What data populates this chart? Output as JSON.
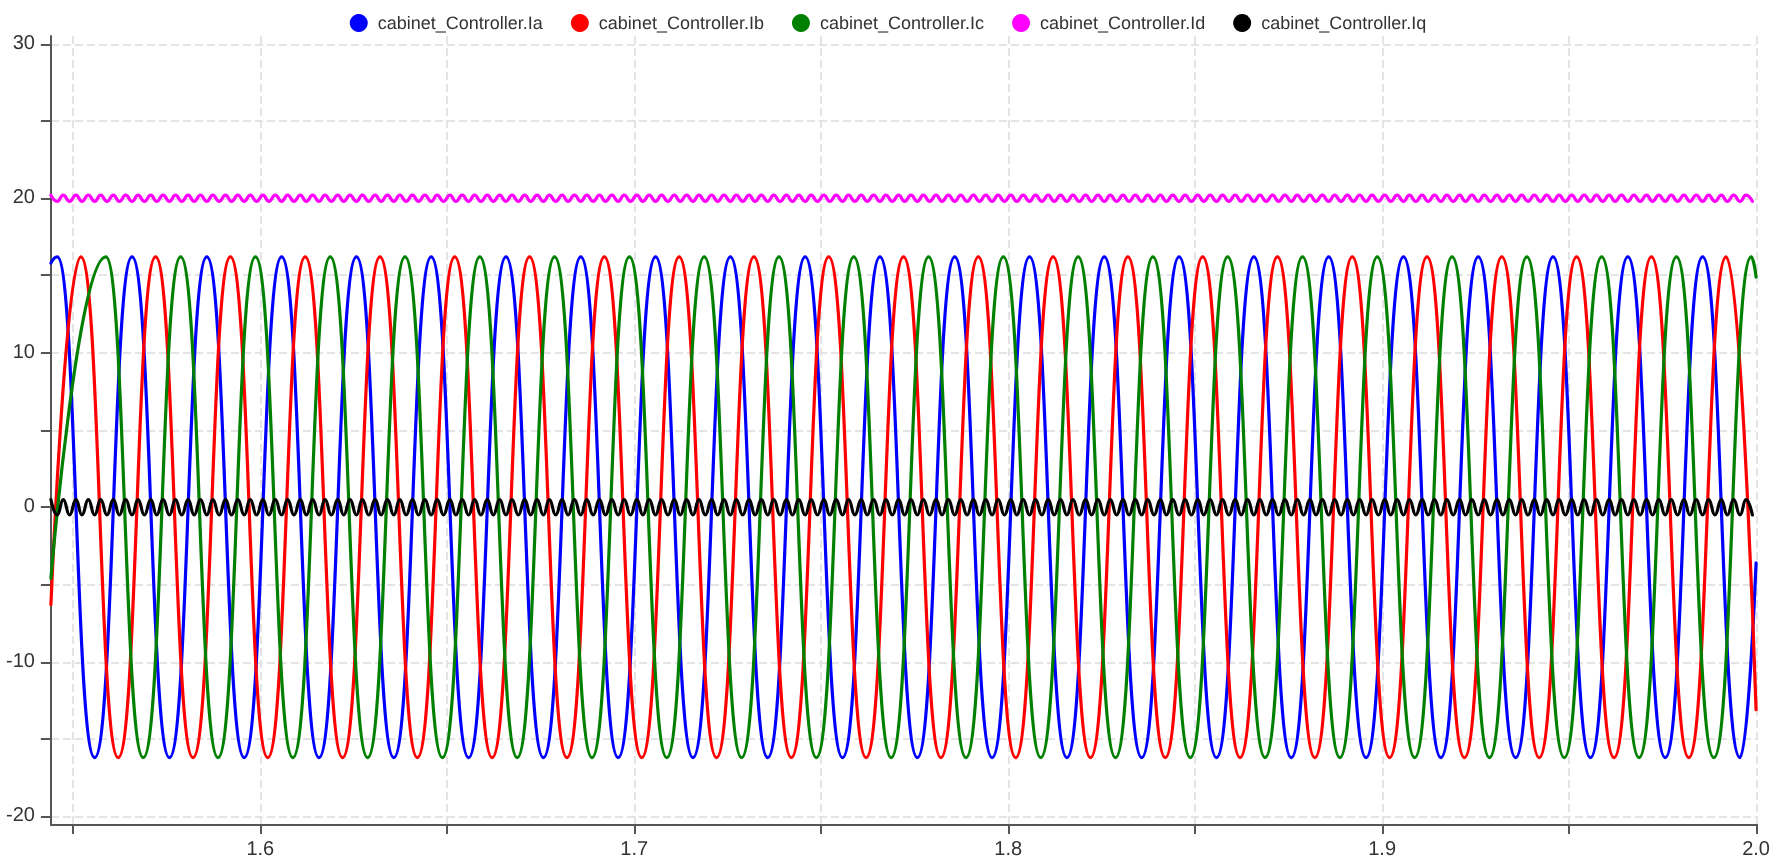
{
  "chart_data": {
    "type": "line",
    "legend": "top",
    "grid": true,
    "marker": "none",
    "line_style": "solid",
    "xlim": [
      1.544,
      2.0
    ],
    "xticks": [
      {
        "value": 1.55,
        "label": null
      },
      1.6,
      {
        "value": 1.65,
        "label": null
      },
      1.7,
      {
        "value": 1.75,
        "label": null
      },
      1.8,
      {
        "value": 1.85,
        "label": null
      },
      1.9,
      {
        "value": 1.95,
        "label": null
      },
      {
        "value": 2.0,
        "label": "2.0"
      }
    ],
    "ylim": [
      -20.5,
      30.5
    ],
    "yticks": [
      -20,
      {
        "value": -15,
        "label": null
      },
      -10,
      {
        "value": -5,
        "label": null
      },
      0,
      {
        "value": 5,
        "label": null
      },
      10,
      {
        "value": 15,
        "label": null
      },
      20,
      {
        "value": 25,
        "label": null
      },
      30
    ],
    "x": [
      1.544,
      1.5457,
      1.5473,
      1.549,
      1.5507,
      1.5523,
      1.554,
      1.5557,
      1.5573,
      1.559,
      1.5607,
      1.5623,
      1.564,
      1.5657,
      1.5673,
      1.569,
      1.5707,
      1.5723,
      1.574,
      1.5757,
      1.5773,
      1.579,
      1.5807,
      1.5823,
      1.584,
      1.5857,
      1.5873,
      1.589,
      1.5907,
      1.5923,
      1.594,
      1.5957,
      1.5973,
      1.599,
      1.6007,
      1.6023,
      1.604,
      1.6057,
      1.6073,
      1.609,
      1.6107,
      1.6123,
      1.614,
      1.6157,
      1.6173,
      1.619,
      1.6207,
      1.6223,
      1.624,
      1.6257,
      1.6273,
      1.629,
      1.6307,
      1.6323,
      1.634,
      1.6357,
      1.6373,
      1.639,
      1.6407,
      1.6423,
      1.644,
      1.6457,
      1.6473,
      1.649,
      1.6507,
      1.6523,
      1.654,
      1.6557,
      1.6573,
      1.659,
      1.6607,
      1.6623,
      1.664,
      1.6657,
      1.6673,
      1.669,
      1.6707,
      1.6723,
      1.674,
      1.6757,
      1.6773,
      1.679,
      1.6807,
      1.6823,
      1.684,
      1.6857,
      1.6873,
      1.689,
      1.6907,
      1.6923,
      1.694,
      1.6957,
      1.6973,
      1.699,
      1.7007,
      1.7023,
      1.704,
      1.7057,
      1.7073,
      1.709,
      1.7107,
      1.7123,
      1.714,
      1.7157,
      1.7173,
      1.719,
      1.7207,
      1.7223,
      1.724,
      1.7257,
      1.7273,
      1.729,
      1.7307,
      1.7323,
      1.734,
      1.7357,
      1.7373,
      1.739,
      1.7407,
      1.7423,
      1.744,
      1.7457,
      1.7473,
      1.749,
      1.7507,
      1.7523,
      1.754,
      1.7557,
      1.7573,
      1.759,
      1.7607,
      1.7623,
      1.764,
      1.7657,
      1.7673,
      1.769,
      1.7707,
      1.7723,
      1.774,
      1.7757,
      1.7773,
      1.779,
      1.7807,
      1.7823,
      1.784,
      1.7857,
      1.7873,
      1.789,
      1.7907,
      1.7923,
      1.794,
      1.7957,
      1.7973,
      1.799,
      1.8007,
      1.8023,
      1.804,
      1.8057,
      1.8073,
      1.809,
      1.8107,
      1.8123,
      1.814,
      1.8157,
      1.8173,
      1.819,
      1.8207,
      1.8223,
      1.824,
      1.8257,
      1.8273,
      1.829,
      1.8307,
      1.8323,
      1.834,
      1.8357,
      1.8373,
      1.839,
      1.8407,
      1.8423,
      1.844,
      1.8457,
      1.8473,
      1.849,
      1.8507,
      1.8523,
      1.854,
      1.8557,
      1.8573,
      1.859,
      1.8607,
      1.8623,
      1.864,
      1.8657,
      1.8673,
      1.869,
      1.8707,
      1.8723,
      1.874,
      1.8757,
      1.8773,
      1.879,
      1.8807,
      1.8823,
      1.884,
      1.8857,
      1.8873,
      1.889,
      1.8907,
      1.8923,
      1.894,
      1.8957,
      1.8973,
      1.899,
      1.9007,
      1.9023,
      1.904,
      1.9057,
      1.9073,
      1.909,
      1.9107,
      1.9123,
      1.914,
      1.9157,
      1.9173,
      1.919,
      1.9207,
      1.9223,
      1.924,
      1.9257,
      1.9273,
      1.929,
      1.9307,
      1.9323,
      1.934,
      1.9357,
      1.9373,
      1.939,
      1.9407,
      1.9423,
      1.944,
      1.9457,
      1.9473,
      1.949,
      1.9507,
      1.9523,
      1.954,
      1.9557,
      1.9573,
      1.959,
      1.9607,
      1.9623,
      1.964,
      1.9657,
      1.9673,
      1.969,
      1.9707,
      1.9723,
      1.974,
      1.9757,
      1.9773,
      1.979,
      1.9807,
      1.9823,
      1.984,
      1.9857,
      1.9873,
      1.989,
      1.9907,
      1.9923,
      1.994,
      1.9957,
      1.9973,
      1.999
    ],
    "series": [
      {
        "name": "cabinet_Controller.Ia",
        "color": "#0000ff",
        "x": [
          1.544,
          1.5457,
          1.5557,
          1.5657,
          1.5757,
          1.5857,
          1.5957,
          1.6057,
          1.6157,
          1.6257,
          1.6357,
          1.6457,
          1.6557,
          1.6657,
          1.6757,
          1.6857,
          1.6957,
          1.7057,
          1.7157,
          1.7257,
          1.7357,
          1.7457,
          1.7557,
          1.7657,
          1.7757,
          1.7857,
          1.7957,
          1.8057,
          1.8157,
          1.8257,
          1.8357,
          1.8457,
          1.8557,
          1.8657,
          1.8757,
          1.8857,
          1.8957,
          1.9057,
          1.9157,
          1.9257,
          1.9357,
          1.9457,
          1.9557,
          1.9657,
          1.9757,
          1.9857,
          1.9957,
          2.0
        ],
        "values": [
          15.8,
          16.2,
          -16.2,
          16.2,
          -16.2,
          16.2,
          -16.2,
          16.2,
          -16.2,
          16.2,
          -16.2,
          16.2,
          -16.2,
          16.2,
          -16.2,
          16.2,
          -16.2,
          16.2,
          -16.2,
          16.2,
          -16.2,
          16.2,
          -16.2,
          16.2,
          -16.2,
          16.2,
          -16.2,
          16.2,
          -16.2,
          16.2,
          -16.2,
          16.2,
          -16.2,
          16.2,
          -16.2,
          16.2,
          -16.2,
          16.2,
          -16.2,
          16.2,
          -16.2,
          16.2,
          -16.2,
          16.2,
          -16.2,
          16.2,
          -16.2,
          -3.6
        ]
      },
      {
        "name": "cabinet_Controller.Ib",
        "color": "#ff0000",
        "x": [
          1.544,
          1.552,
          1.562,
          1.572,
          1.582,
          1.592,
          1.602,
          1.612,
          1.622,
          1.632,
          1.642,
          1.652,
          1.662,
          1.672,
          1.682,
          1.692,
          1.702,
          1.712,
          1.722,
          1.732,
          1.742,
          1.752,
          1.762,
          1.772,
          1.782,
          1.792,
          1.802,
          1.812,
          1.822,
          1.832,
          1.842,
          1.852,
          1.862,
          1.872,
          1.882,
          1.892,
          1.902,
          1.912,
          1.922,
          1.932,
          1.942,
          1.952,
          1.962,
          1.972,
          1.982,
          1.992,
          2.0
        ],
        "values": [
          -6.3,
          16.2,
          -16.2,
          16.2,
          -16.2,
          16.2,
          -16.2,
          16.2,
          -16.2,
          16.2,
          -16.2,
          16.2,
          -16.2,
          16.2,
          -16.2,
          16.2,
          -16.2,
          16.2,
          -16.2,
          16.2,
          -16.2,
          16.2,
          -16.2,
          16.2,
          -16.2,
          16.2,
          -16.2,
          16.2,
          -16.2,
          16.2,
          -16.2,
          16.2,
          -16.2,
          16.2,
          -16.2,
          16.2,
          -16.2,
          16.2,
          -16.2,
          16.2,
          -16.2,
          16.2,
          -16.2,
          16.2,
          -16.2,
          16.2,
          -13.1
        ]
      },
      {
        "name": "cabinet_Controller.Ic",
        "color": "#008000",
        "x": [
          1.544,
          1.5587,
          1.5687,
          1.5787,
          1.5887,
          1.5987,
          1.6087,
          1.6187,
          1.6287,
          1.6387,
          1.6487,
          1.6587,
          1.6687,
          1.6787,
          1.6887,
          1.6987,
          1.7087,
          1.7187,
          1.7287,
          1.7387,
          1.7487,
          1.7587,
          1.7687,
          1.7787,
          1.7887,
          1.7987,
          1.8087,
          1.8187,
          1.8287,
          1.8387,
          1.8487,
          1.8587,
          1.8687,
          1.8787,
          1.8887,
          1.8987,
          1.9087,
          1.9187,
          1.9287,
          1.9387,
          1.9487,
          1.9587,
          1.9687,
          1.9787,
          1.9887,
          1.9987,
          2.0
        ],
        "values": [
          -4.6,
          16.2,
          -16.2,
          16.2,
          -16.2,
          16.2,
          -16.2,
          16.2,
          -16.2,
          16.2,
          -16.2,
          16.2,
          -16.2,
          16.2,
          -16.2,
          16.2,
          -16.2,
          16.2,
          -16.2,
          16.2,
          -16.2,
          16.2,
          -16.2,
          16.2,
          -16.2,
          16.2,
          -16.2,
          16.2,
          -16.2,
          16.2,
          -16.2,
          16.2,
          -16.2,
          16.2,
          -16.2,
          16.2,
          -16.2,
          16.2,
          -16.2,
          16.2,
          -16.2,
          16.2,
          -16.2,
          16.2,
          -16.2,
          16.2,
          14.9
        ]
      },
      {
        "name": "cabinet_Controller.Id",
        "color": "#ff00ff",
        "values": [
          20.2,
          19.8,
          20.2,
          19.8,
          20.2,
          19.8,
          20.2,
          19.8,
          20.2,
          19.8,
          20.2,
          19.8,
          20.2,
          19.8,
          20.2,
          19.8,
          20.2,
          19.8,
          20.2,
          19.8,
          20.2,
          19.8,
          20.2,
          19.8,
          20.2,
          19.8,
          20.2,
          19.8,
          20.2,
          19.8,
          20.2,
          19.8,
          20.2,
          19.8,
          20.2,
          19.8,
          20.2,
          19.8,
          20.2,
          19.8,
          20.2,
          19.8,
          20.2,
          19.8,
          20.2,
          19.8,
          20.2,
          19.8,
          20.2,
          19.8,
          20.2,
          19.8,
          20.2,
          19.8,
          20.2,
          19.8,
          20.2,
          19.8,
          20.2,
          19.8,
          20.2,
          19.8,
          20.2,
          19.8,
          20.2,
          19.8,
          20.2,
          19.8,
          20.2,
          19.8,
          20.2,
          19.8,
          20.2,
          19.8,
          20.2,
          19.8,
          20.2,
          19.8,
          20.2,
          19.8,
          20.2,
          19.8,
          20.2,
          19.8,
          20.2,
          19.8,
          20.2,
          19.8,
          20.2,
          19.8,
          20.2,
          19.8,
          20.2,
          19.8,
          20.2,
          19.8,
          20.2,
          19.8,
          20.2,
          19.8,
          20.2,
          19.8,
          20.2,
          19.8,
          20.2,
          19.8,
          20.2,
          19.8,
          20.2,
          19.8,
          20.2,
          19.8,
          20.2,
          19.8,
          20.2,
          19.8,
          20.2,
          19.8,
          20.2,
          19.8,
          20.2,
          19.8,
          20.2,
          19.8,
          20.2,
          19.8,
          20.2,
          19.8,
          20.2,
          19.8,
          20.2,
          19.8,
          20.2,
          19.8,
          20.2,
          19.8,
          20.2,
          19.8,
          20.2,
          19.8,
          20.2,
          19.8,
          20.2,
          19.8,
          20.2,
          19.8,
          20.2,
          19.8,
          20.2,
          19.8,
          20.2,
          19.8,
          20.2,
          19.8,
          20.2,
          19.8,
          20.2,
          19.8,
          20.2,
          19.8,
          20.2,
          19.8,
          20.2,
          19.8,
          20.2,
          19.8,
          20.2,
          19.8,
          20.2,
          19.8,
          20.2,
          19.8,
          20.2,
          19.8,
          20.2,
          19.8,
          20.2,
          19.8,
          20.2,
          19.8,
          20.2,
          19.8,
          20.2,
          19.8,
          20.2,
          19.8,
          20.2,
          19.8,
          20.2,
          19.8,
          20.2,
          19.8,
          20.2,
          19.8,
          20.2,
          19.8,
          20.2,
          19.8,
          20.2,
          19.8,
          20.2,
          19.8,
          20.2,
          19.8,
          20.2,
          19.8,
          20.2,
          19.8,
          20.2,
          19.8,
          20.2,
          19.8,
          20.2,
          19.8,
          20.2,
          19.8,
          20.2,
          19.8,
          20.2,
          19.8,
          20.2,
          19.8,
          20.2,
          19.8,
          20.2,
          19.8,
          20.2,
          19.8,
          20.2,
          19.8,
          20.2,
          19.8,
          20.2,
          19.8,
          20.2,
          19.8,
          20.2,
          19.8,
          20.2,
          19.8,
          20.2,
          19.8,
          20.2,
          19.8,
          20.2,
          19.8,
          20.2,
          19.8,
          20.2,
          19.8,
          20.2,
          19.8,
          20.2,
          19.8,
          20.2,
          19.8,
          20.2,
          19.8,
          20.2,
          19.8,
          20.2,
          19.8,
          20.2,
          19.8,
          20.2,
          19.8,
          20.2,
          19.8,
          20.2,
          19.8,
          20.2,
          19.8,
          20.2,
          19.8
        ]
      },
      {
        "name": "cabinet_Controller.Iq",
        "color": "#000000",
        "values": [
          0.5,
          -0.5,
          0.5,
          -0.5,
          0.5,
          -0.5,
          0.5,
          -0.5,
          0.5,
          -0.5,
          0.5,
          -0.5,
          0.5,
          -0.5,
          0.5,
          -0.5,
          0.5,
          -0.5,
          0.5,
          -0.5,
          0.5,
          -0.5,
          0.5,
          -0.5,
          0.5,
          -0.5,
          0.5,
          -0.5,
          0.5,
          -0.5,
          0.5,
          -0.5,
          0.5,
          -0.5,
          0.5,
          -0.5,
          0.5,
          -0.5,
          0.5,
          -0.5,
          0.5,
          -0.5,
          0.5,
          -0.5,
          0.5,
          -0.5,
          0.5,
          -0.5,
          0.5,
          -0.5,
          0.5,
          -0.5,
          0.5,
          -0.5,
          0.5,
          -0.5,
          0.5,
          -0.5,
          0.5,
          -0.5,
          0.5,
          -0.5,
          0.5,
          -0.5,
          0.5,
          -0.5,
          0.5,
          -0.5,
          0.5,
          -0.5,
          0.5,
          -0.5,
          0.5,
          -0.5,
          0.5,
          -0.5,
          0.5,
          -0.5,
          0.5,
          -0.5,
          0.5,
          -0.5,
          0.5,
          -0.5,
          0.5,
          -0.5,
          0.5,
          -0.5,
          0.5,
          -0.5,
          0.5,
          -0.5,
          0.5,
          -0.5,
          0.5,
          -0.5,
          0.5,
          -0.5,
          0.5,
          -0.5,
          0.5,
          -0.5,
          0.5,
          -0.5,
          0.5,
          -0.5,
          0.5,
          -0.5,
          0.5,
          -0.5,
          0.5,
          -0.5,
          0.5,
          -0.5,
          0.5,
          -0.5,
          0.5,
          -0.5,
          0.5,
          -0.5,
          0.5,
          -0.5,
          0.5,
          -0.5,
          0.5,
          -0.5,
          0.5,
          -0.5,
          0.5,
          -0.5,
          0.5,
          -0.5,
          0.5,
          -0.5,
          0.5,
          -0.5,
          0.5,
          -0.5,
          0.5,
          -0.5,
          0.5,
          -0.5,
          0.5,
          -0.5,
          0.5,
          -0.5,
          0.5,
          -0.5,
          0.5,
          -0.5,
          0.5,
          -0.5,
          0.5,
          -0.5,
          0.5,
          -0.5,
          0.5,
          -0.5,
          0.5,
          -0.5,
          0.5,
          -0.5,
          0.5,
          -0.5,
          0.5,
          -0.5,
          0.5,
          -0.5,
          0.5,
          -0.5,
          0.5,
          -0.5,
          0.5,
          -0.5,
          0.5,
          -0.5,
          0.5,
          -0.5,
          0.5,
          -0.5,
          0.5,
          -0.5,
          0.5,
          -0.5,
          0.5,
          -0.5,
          0.5,
          -0.5,
          0.5,
          -0.5,
          0.5,
          -0.5,
          0.5,
          -0.5,
          0.5,
          -0.5,
          0.5,
          -0.5,
          0.5,
          -0.5,
          0.5,
          -0.5,
          0.5,
          -0.5,
          0.5,
          -0.5,
          0.5,
          -0.5,
          0.5,
          -0.5,
          0.5,
          -0.5,
          0.5,
          -0.5,
          0.5,
          -0.5,
          0.5,
          -0.5,
          0.5,
          -0.5,
          0.5,
          -0.5,
          0.5,
          -0.5,
          0.5,
          -0.5,
          0.5,
          -0.5,
          0.5,
          -0.5,
          0.5,
          -0.5,
          0.5,
          -0.5,
          0.5,
          -0.5,
          0.5,
          -0.5,
          0.5,
          -0.5,
          0.5,
          -0.5,
          0.5,
          -0.5,
          0.5,
          -0.5,
          0.5,
          -0.5,
          0.5,
          -0.5,
          0.5,
          -0.5,
          0.5,
          -0.5,
          0.5,
          -0.5,
          0.5,
          -0.5,
          0.5,
          -0.5,
          0.5,
          -0.5,
          0.5,
          -0.5,
          0.5,
          -0.5,
          0.5,
          -0.5,
          0.5,
          -0.5,
          0.5,
          -0.5,
          0.5,
          -0.5
        ]
      }
    ]
  }
}
